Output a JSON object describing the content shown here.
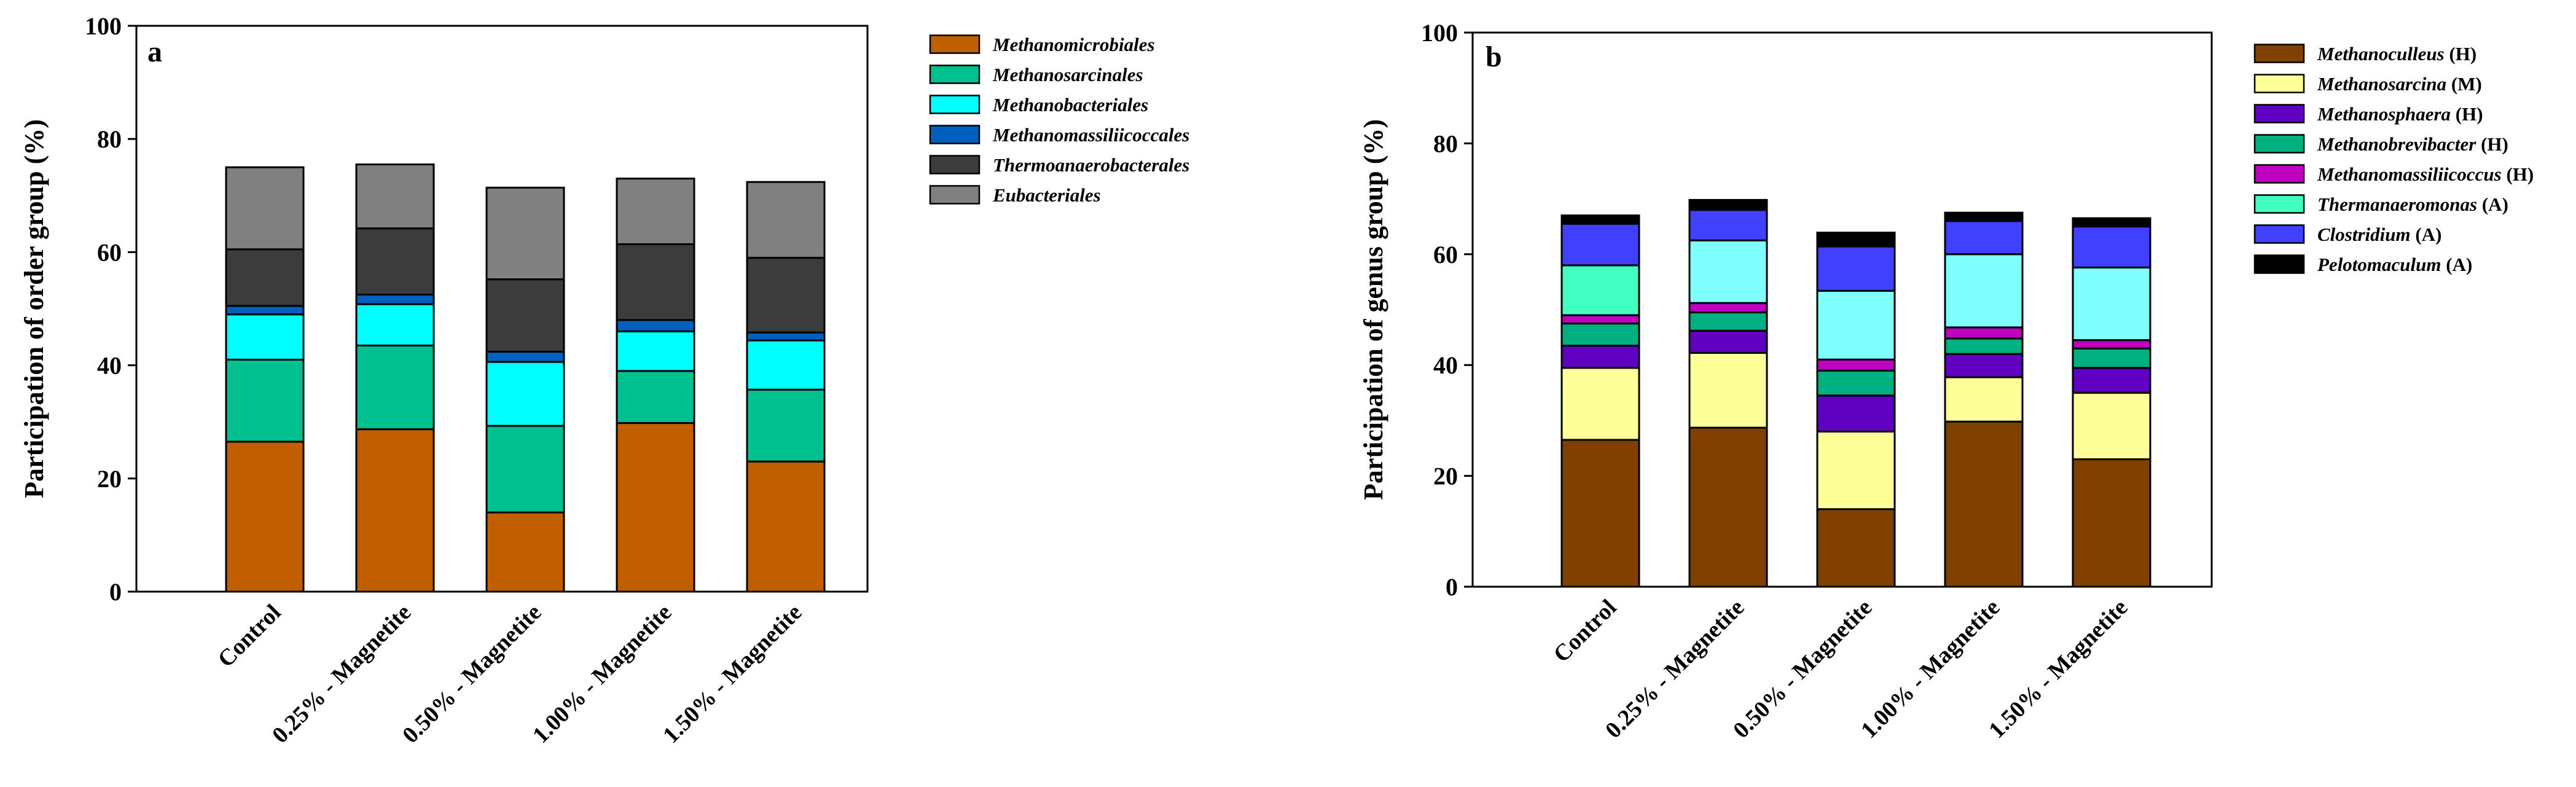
{
  "chart_data": [
    {
      "type": "bar",
      "stacked": true,
      "panel_label": "a",
      "title": "",
      "xlabel": "",
      "ylabel": "Participation of order group (%)",
      "ylim": [
        0,
        100
      ],
      "yticks": [
        0,
        20,
        40,
        60,
        80,
        100
      ],
      "categories": [
        "Control",
        "0.25% - Magnetite",
        "0.50% - Magnetite",
        "1.00% - Magnetite",
        "1.50% - Magnetite"
      ],
      "legend_position": "right",
      "series": [
        {
          "name": "Methanomicrobiales",
          "suffix": "",
          "color": "#c05e00",
          "values": [
            26.5,
            28.7,
            14.0,
            29.8,
            23.0
          ]
        },
        {
          "name": "Methanosarcinales",
          "suffix": "",
          "color": "#00c090",
          "values": [
            14.5,
            14.8,
            15.3,
            9.2,
            12.7
          ]
        },
        {
          "name": "Methanobacteriales",
          "suffix": "",
          "color": "#00ffff",
          "values": [
            8.0,
            7.3,
            11.3,
            7.0,
            8.7
          ]
        },
        {
          "name": "Methanomassiliicoccales",
          "suffix": "",
          "color": "#0060c0",
          "values": [
            1.5,
            1.7,
            1.8,
            2.0,
            1.4
          ]
        },
        {
          "name": "Thermoanaerobacterales",
          "suffix": "",
          "color": "#3c3c3c",
          "values": [
            10.0,
            11.7,
            12.8,
            13.4,
            13.2
          ]
        },
        {
          "name": "Eubacteriales",
          "suffix": "",
          "color": "#808080",
          "values": [
            14.5,
            11.3,
            16.2,
            11.6,
            13.4
          ]
        }
      ]
    },
    {
      "type": "bar",
      "stacked": true,
      "panel_label": "b",
      "title": "",
      "xlabel": "",
      "ylabel": "Participation of genus group (%)",
      "ylim": [
        0,
        100
      ],
      "yticks": [
        0,
        20,
        40,
        60,
        80,
        100
      ],
      "categories": [
        "Control",
        "0.25% - Magnetite",
        "0.50% - Magnetite",
        "1.00% - Magnetite",
        "1.50% - Magnetite"
      ],
      "legend_position": "right",
      "series": [
        {
          "name": "Methanoculleus",
          "suffix": " (H)",
          "color": "#804000",
          "values": [
            26.5,
            28.7,
            14.0,
            29.8,
            23.0
          ]
        },
        {
          "name": "Methanosarcina",
          "suffix": " (M)",
          "color": "#ffff99",
          "values": [
            13.0,
            13.5,
            14.0,
            8.0,
            12.0
          ]
        },
        {
          "name": "Methanosphaera",
          "suffix": " (H)",
          "color": "#6000c0",
          "values": [
            4.0,
            4.0,
            6.5,
            4.2,
            4.5
          ]
        },
        {
          "name": "Methanobrevibacter",
          "suffix": " (H)",
          "color": "#00b080",
          "values": [
            4.0,
            3.3,
            4.5,
            2.8,
            3.5
          ]
        },
        {
          "name": "Methanomassiliicoccus",
          "suffix": " (H)",
          "color": "#c000c0",
          "values": [
            1.5,
            1.7,
            2.0,
            2.0,
            1.5
          ]
        },
        {
          "name": "Thermanaeromonas",
          "suffix": " (A)",
          "color": "#40ffc0",
          "values": [
            9.0,
            0,
            0,
            0,
            0
          ]
        },
        {
          "name": "Thermanaeromonas_light",
          "legend": false,
          "color": "#80ffff",
          "values": [
            0,
            11.3,
            12.4,
            13.2,
            13.1
          ]
        },
        {
          "name": "Clostridium",
          "suffix": " (A)",
          "color": "#4040ff",
          "values": [
            7.5,
            5.5,
            8.0,
            6.0,
            7.4
          ]
        },
        {
          "name": "Pelotomaculum",
          "suffix": " (A)",
          "color": "#000000",
          "values": [
            1.5,
            1.8,
            2.5,
            1.5,
            1.5
          ]
        }
      ]
    }
  ]
}
